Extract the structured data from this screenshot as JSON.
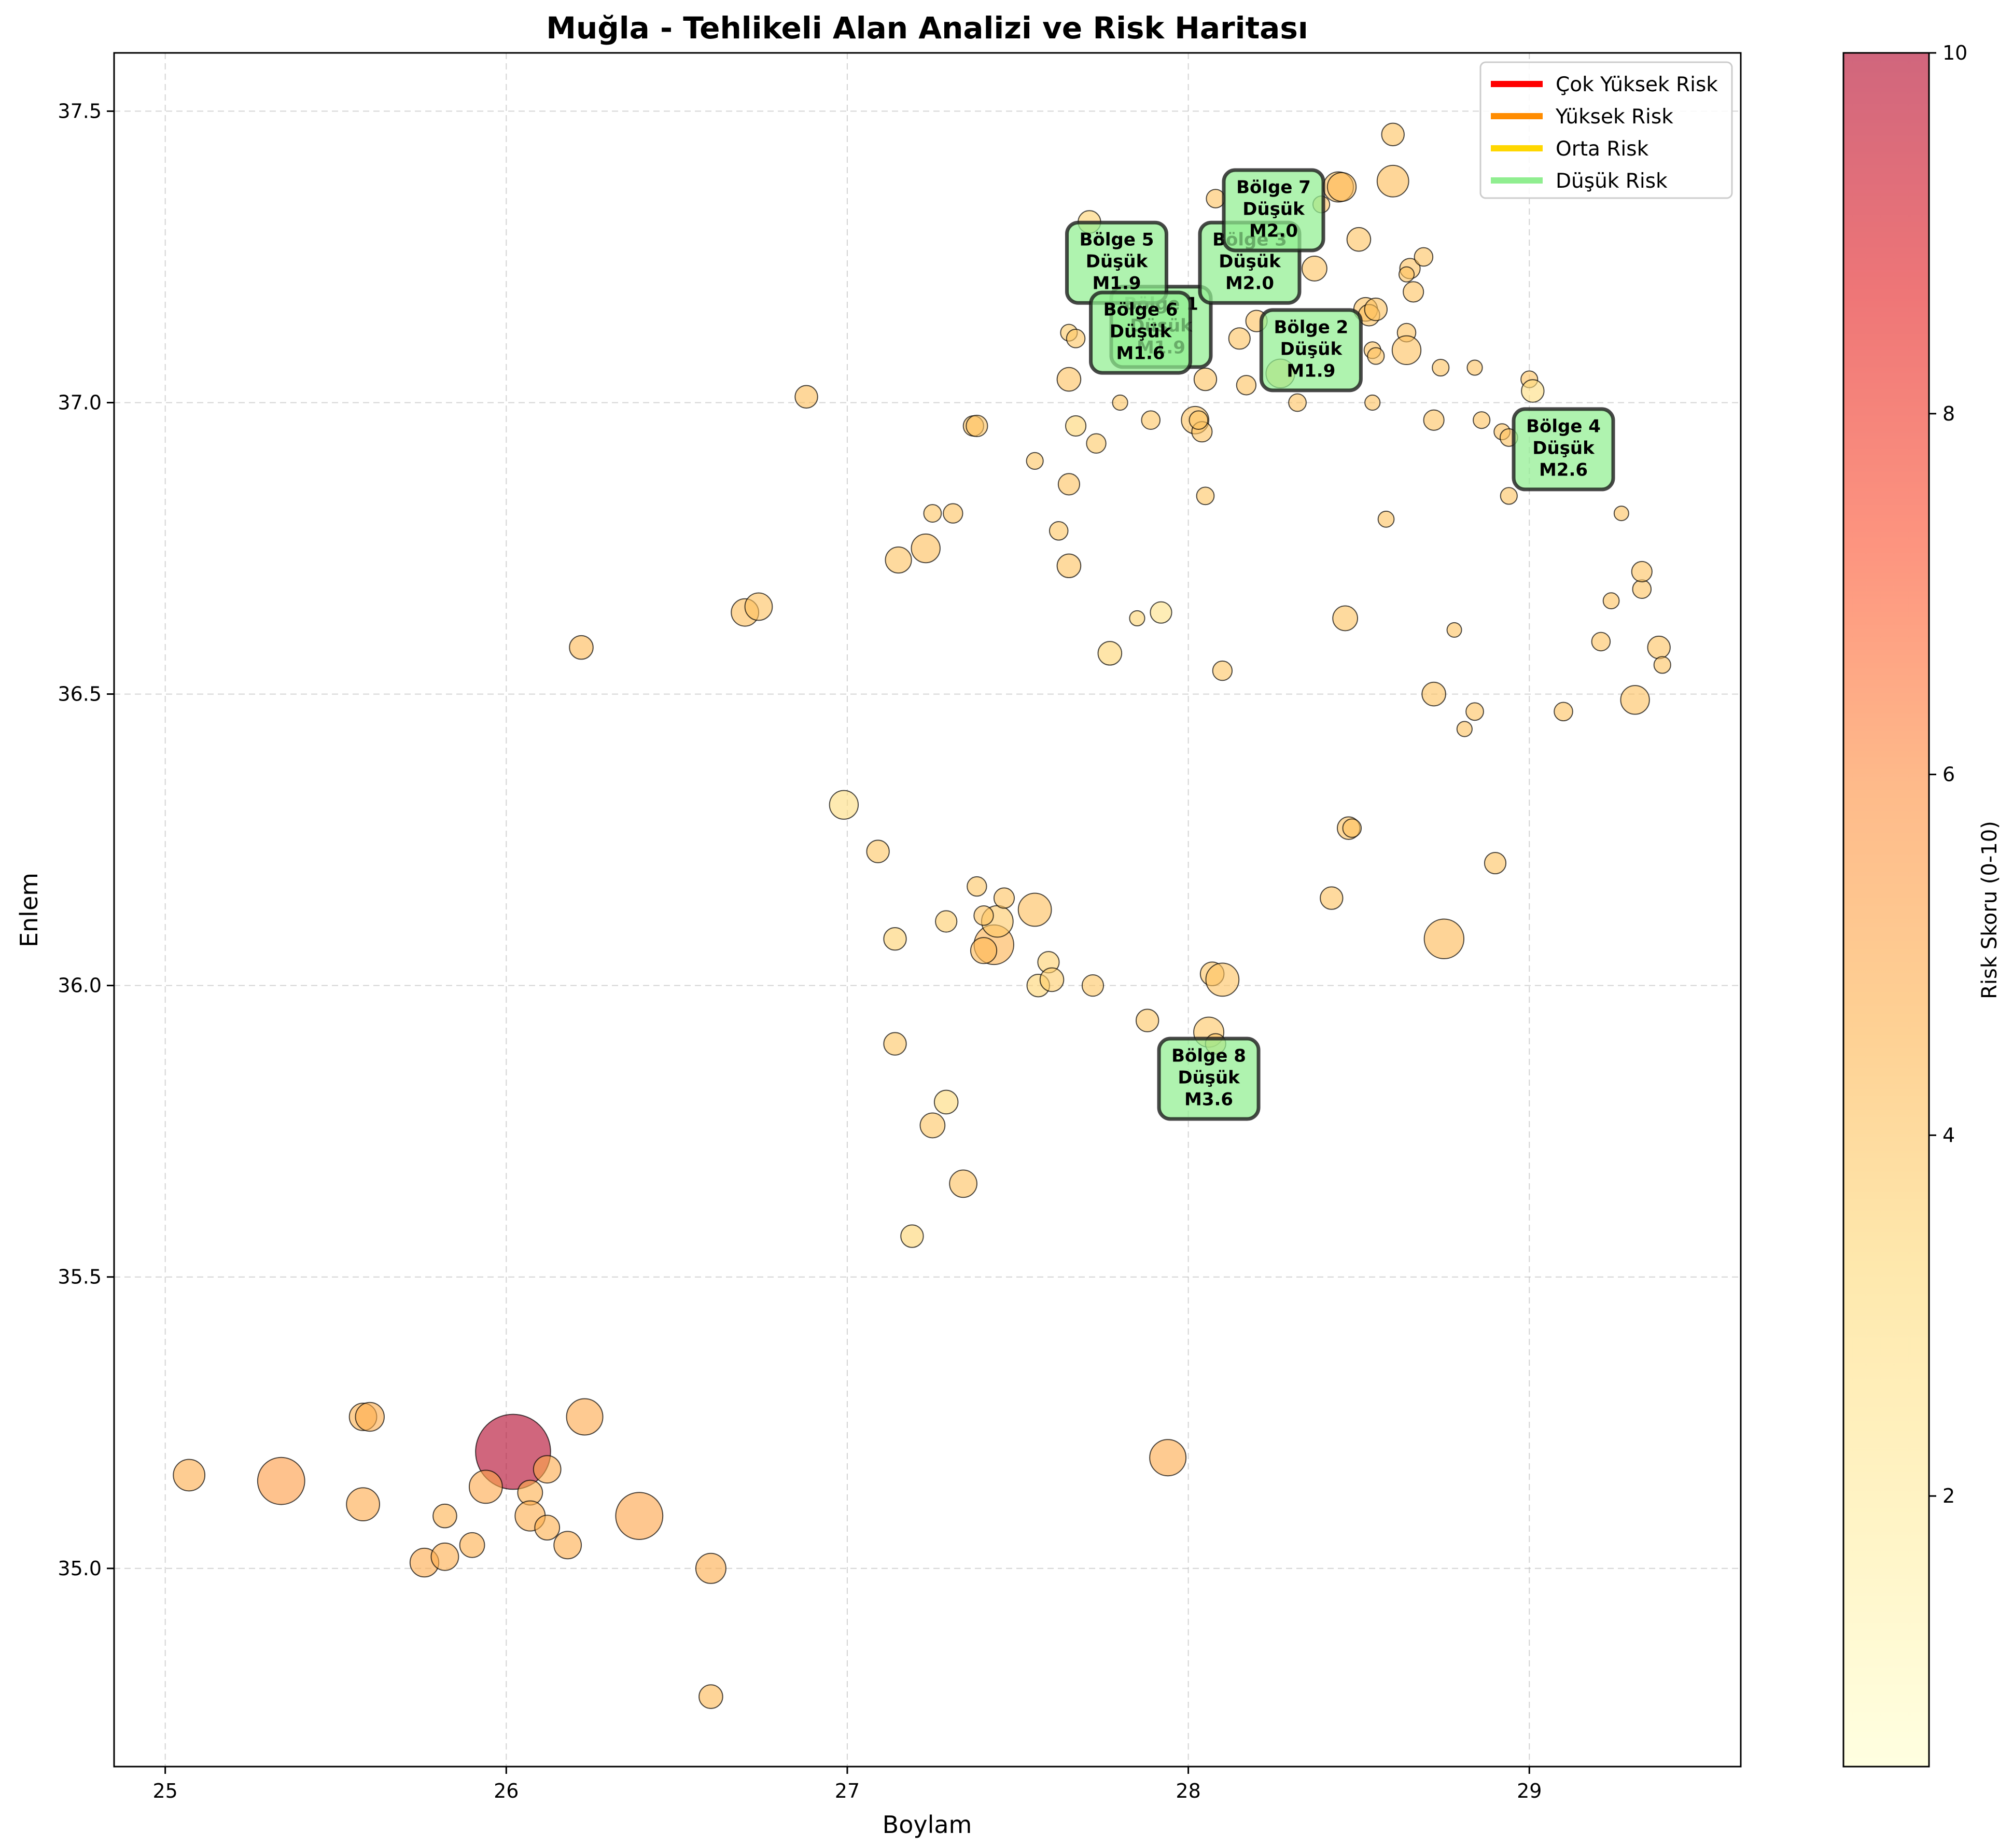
{
  "chart_data": {
    "type": "scatter",
    "title": "Muğla - Tehlikeli Alan Analizi ve Risk Haritası",
    "xlabel": "Boylam",
    "ylabel": "Enlem",
    "xlim": [
      24.85,
      29.62
    ],
    "ylim": [
      34.66,
      37.6
    ],
    "xticks": [
      "25",
      "26",
      "27",
      "28",
      "29"
    ],
    "yticks": [
      "35.0",
      "35.5",
      "36.0",
      "36.5",
      "37.0",
      "37.5"
    ],
    "grid": true,
    "colorbar": {
      "label": "Risk Skoru (0-10)",
      "range": [
        0.5,
        10
      ],
      "ticks": [
        "2",
        "4",
        "6",
        "8",
        "10"
      ],
      "colormap": [
        "#ffffcc",
        "#ffeda0",
        "#fed976",
        "#feb24c",
        "#fd8d3c",
        "#fc4e2a",
        "#e31a1c",
        "#b10026"
      ]
    },
    "legend": {
      "placement": "top-right",
      "entries": [
        {
          "label": "Çok Yüksek Risk",
          "color": "#ff0000"
        },
        {
          "label": "Yüksek Risk",
          "color": "#ff8c00"
        },
        {
          "label": "Orta Risk",
          "color": "#ffd700"
        },
        {
          "label": "Düşük Risk",
          "color": "#90ee90"
        }
      ]
    },
    "regions": [
      {
        "label": "Bölge 1",
        "risk": "Düşük",
        "mag": "M1.9",
        "x": 27.92,
        "y": 37.13
      },
      {
        "label": "Bölge 2",
        "risk": "Düşük",
        "mag": "M1.9",
        "x": 28.36,
        "y": 37.09
      },
      {
        "label": "Bölge 3",
        "risk": "Düşük",
        "mag": "M2.0",
        "x": 28.18,
        "y": 37.24
      },
      {
        "label": "Bölge 4",
        "risk": "Düşük",
        "mag": "M2.6",
        "x": 29.1,
        "y": 36.92
      },
      {
        "label": "Bölge 5",
        "risk": "Düşük",
        "mag": "M1.9",
        "x": 27.79,
        "y": 37.24
      },
      {
        "label": "Bölge 6",
        "risk": "Düşük",
        "mag": "M1.6",
        "x": 27.86,
        "y": 37.12
      },
      {
        "label": "Bölge 7",
        "risk": "Düşük",
        "mag": "M2.0",
        "x": 28.25,
        "y": 37.33
      },
      {
        "label": "Bölge 8",
        "risk": "Düşük",
        "mag": "M3.6",
        "x": 28.06,
        "y": 35.84
      }
    ],
    "points": [
      {
        "x": 26.02,
        "y": 35.2,
        "m": 5.4,
        "r": 10
      },
      {
        "x": 25.34,
        "y": 35.15,
        "m": 4.2,
        "r": 5.5
      },
      {
        "x": 25.07,
        "y": 35.16,
        "m": 3.3,
        "r": 4.8
      },
      {
        "x": 25.58,
        "y": 35.26,
        "m": 3.0,
        "r": 4.6
      },
      {
        "x": 25.6,
        "y": 35.26,
        "m": 3.1,
        "r": 4.8
      },
      {
        "x": 25.58,
        "y": 35.11,
        "m": 3.4,
        "r": 4.9
      },
      {
        "x": 25.82,
        "y": 35.09,
        "m": 2.7,
        "r": 4.6
      },
      {
        "x": 25.94,
        "y": 35.14,
        "m": 3.4,
        "r": 5.0
      },
      {
        "x": 25.76,
        "y": 35.01,
        "m": 3.1,
        "r": 4.9
      },
      {
        "x": 25.82,
        "y": 35.02,
        "m": 3.0,
        "r": 4.8
      },
      {
        "x": 25.9,
        "y": 35.04,
        "m": 2.8,
        "r": 4.7
      },
      {
        "x": 26.07,
        "y": 35.13,
        "m": 2.8,
        "r": 4.7
      },
      {
        "x": 26.12,
        "y": 35.17,
        "m": 3.0,
        "r": 4.9
      },
      {
        "x": 26.07,
        "y": 35.09,
        "m": 3.2,
        "r": 4.8
      },
      {
        "x": 26.12,
        "y": 35.07,
        "m": 2.8,
        "r": 4.7
      },
      {
        "x": 26.18,
        "y": 35.04,
        "m": 3.0,
        "r": 4.8
      },
      {
        "x": 26.23,
        "y": 35.26,
        "m": 3.6,
        "r": 5.0
      },
      {
        "x": 26.39,
        "y": 35.09,
        "m": 4.2,
        "r": 5.2
      },
      {
        "x": 26.6,
        "y": 35.0,
        "m": 3.2,
        "r": 4.8
      },
      {
        "x": 26.6,
        "y": 34.78,
        "m": 2.7,
        "r": 4.4
      },
      {
        "x": 27.94,
        "y": 35.19,
        "m": 3.6,
        "r": 4.9
      },
      {
        "x": 26.22,
        "y": 36.58,
        "m": 2.7,
        "r": 4.4
      },
      {
        "x": 26.88,
        "y": 37.01,
        "m": 2.6,
        "r": 4.2
      },
      {
        "x": 26.7,
        "y": 36.64,
        "m": 3.0,
        "r": 4.2
      },
      {
        "x": 26.74,
        "y": 36.65,
        "m": 3.0,
        "r": 4.1
      },
      {
        "x": 26.99,
        "y": 36.31,
        "m": 3.1,
        "r": 3.0
      },
      {
        "x": 27.09,
        "y": 36.23,
        "m": 2.6,
        "r": 3.9
      },
      {
        "x": 27.14,
        "y": 36.08,
        "m": 2.6,
        "r": 3.5
      },
      {
        "x": 27.14,
        "y": 35.9,
        "m": 2.6,
        "r": 3.9
      },
      {
        "x": 27.29,
        "y": 35.8,
        "m": 2.7,
        "r": 3.2
      },
      {
        "x": 27.25,
        "y": 35.76,
        "m": 2.8,
        "r": 3.9
      },
      {
        "x": 27.34,
        "y": 35.66,
        "m": 3.0,
        "r": 4.1
      },
      {
        "x": 27.19,
        "y": 35.57,
        "m": 2.6,
        "r": 3.4
      },
      {
        "x": 27.43,
        "y": 36.07,
        "m": 3.8,
        "r": 4.6
      },
      {
        "x": 27.44,
        "y": 36.11,
        "m": 3.3,
        "r": 3.8
      },
      {
        "x": 27.4,
        "y": 36.06,
        "m": 2.9,
        "r": 4.4
      },
      {
        "x": 27.29,
        "y": 36.11,
        "m": 2.5,
        "r": 3.7
      },
      {
        "x": 27.4,
        "y": 36.12,
        "m": 2.3,
        "r": 4.0
      },
      {
        "x": 27.46,
        "y": 36.15,
        "m": 2.4,
        "r": 4.0
      },
      {
        "x": 27.38,
        "y": 36.17,
        "m": 2.3,
        "r": 3.9
      },
      {
        "x": 27.55,
        "y": 36.13,
        "m": 3.4,
        "r": 4.2
      },
      {
        "x": 27.59,
        "y": 36.04,
        "m": 2.5,
        "r": 3.5
      },
      {
        "x": 27.56,
        "y": 36.0,
        "m": 2.6,
        "r": 3.4
      },
      {
        "x": 27.6,
        "y": 36.01,
        "m": 2.7,
        "r": 3.7
      },
      {
        "x": 27.72,
        "y": 36.0,
        "m": 2.5,
        "r": 3.9
      },
      {
        "x": 27.88,
        "y": 35.94,
        "m": 2.6,
        "r": 3.9
      },
      {
        "x": 28.06,
        "y": 35.92,
        "m": 3.2,
        "r": 3.9
      },
      {
        "x": 28.08,
        "y": 35.9,
        "m": 2.4,
        "r": 3.9
      },
      {
        "x": 28.07,
        "y": 36.02,
        "m": 2.7,
        "r": 3.9
      },
      {
        "x": 28.1,
        "y": 36.01,
        "m": 3.4,
        "r": 4.0
      },
      {
        "x": 28.42,
        "y": 36.15,
        "m": 2.6,
        "r": 4.0
      },
      {
        "x": 28.47,
        "y": 36.27,
        "m": 2.6,
        "r": 4.0
      },
      {
        "x": 28.48,
        "y": 36.27,
        "m": 2.2,
        "r": 4.0
      },
      {
        "x": 28.75,
        "y": 36.08,
        "m": 3.8,
        "r": 4.4
      },
      {
        "x": 28.9,
        "y": 36.21,
        "m": 2.5,
        "r": 4.0
      },
      {
        "x": 27.15,
        "y": 36.73,
        "m": 2.9,
        "r": 4.0
      },
      {
        "x": 27.23,
        "y": 36.75,
        "m": 3.1,
        "r": 4.2
      },
      {
        "x": 27.25,
        "y": 36.81,
        "m": 2.1,
        "r": 3.9
      },
      {
        "x": 27.31,
        "y": 36.81,
        "m": 2.3,
        "r": 4.0
      },
      {
        "x": 27.37,
        "y": 36.96,
        "m": 2.4,
        "r": 4.0
      },
      {
        "x": 27.38,
        "y": 36.96,
        "m": 2.5,
        "r": 4.0
      },
      {
        "x": 27.55,
        "y": 36.9,
        "m": 2.0,
        "r": 3.9
      },
      {
        "x": 27.62,
        "y": 36.78,
        "m": 2.2,
        "r": 3.9
      },
      {
        "x": 27.65,
        "y": 36.86,
        "m": 2.5,
        "r": 4.0
      },
      {
        "x": 27.65,
        "y": 36.72,
        "m": 2.7,
        "r": 4.0
      },
      {
        "x": 27.67,
        "y": 36.96,
        "m": 2.4,
        "r": 3.4
      },
      {
        "x": 27.73,
        "y": 36.93,
        "m": 2.3,
        "r": 3.8
      },
      {
        "x": 27.77,
        "y": 36.57,
        "m": 2.7,
        "r": 3.4
      },
      {
        "x": 27.85,
        "y": 36.63,
        "m": 1.8,
        "r": 3.4
      },
      {
        "x": 27.92,
        "y": 36.64,
        "m": 2.5,
        "r": 2.7
      },
      {
        "x": 28.1,
        "y": 36.54,
        "m": 2.3,
        "r": 3.9
      },
      {
        "x": 28.46,
        "y": 36.63,
        "m": 2.8,
        "r": 4.0
      },
      {
        "x": 27.65,
        "y": 37.04,
        "m": 2.7,
        "r": 4.1
      },
      {
        "x": 27.65,
        "y": 37.12,
        "m": 2.0,
        "r": 3.7
      },
      {
        "x": 27.67,
        "y": 37.11,
        "m": 2.2,
        "r": 3.9
      },
      {
        "x": 27.71,
        "y": 37.31,
        "m": 2.6,
        "r": 3.5
      },
      {
        "x": 27.8,
        "y": 37.0,
        "m": 1.8,
        "r": 3.9
      },
      {
        "x": 27.89,
        "y": 36.97,
        "m": 2.2,
        "r": 3.9
      },
      {
        "x": 28.02,
        "y": 36.97,
        "m": 3.0,
        "r": 4.0
      },
      {
        "x": 28.04,
        "y": 36.95,
        "m": 2.4,
        "r": 4.0
      },
      {
        "x": 28.03,
        "y": 36.97,
        "m": 2.2,
        "r": 3.9
      },
      {
        "x": 28.05,
        "y": 36.84,
        "m": 2.1,
        "r": 3.9
      },
      {
        "x": 28.05,
        "y": 37.04,
        "m": 2.6,
        "r": 4.0
      },
      {
        "x": 28.15,
        "y": 37.11,
        "m": 2.5,
        "r": 4.0
      },
      {
        "x": 28.17,
        "y": 37.03,
        "m": 2.3,
        "r": 4.0
      },
      {
        "x": 28.2,
        "y": 37.14,
        "m": 2.5,
        "r": 4.0
      },
      {
        "x": 28.27,
        "y": 37.05,
        "m": 3.1,
        "r": 4.0
      },
      {
        "x": 28.32,
        "y": 37.0,
        "m": 2.1,
        "r": 4.0
      },
      {
        "x": 28.37,
        "y": 37.23,
        "m": 2.8,
        "r": 4.0
      },
      {
        "x": 28.44,
        "y": 37.37,
        "m": 3.2,
        "r": 4.1
      },
      {
        "x": 28.45,
        "y": 37.37,
        "m": 3.1,
        "r": 4.4
      },
      {
        "x": 28.5,
        "y": 37.28,
        "m": 2.7,
        "r": 4.0
      },
      {
        "x": 28.08,
        "y": 37.35,
        "m": 2.2,
        "r": 4.0
      },
      {
        "x": 28.39,
        "y": 37.34,
        "m": 2.0,
        "r": 4.0
      },
      {
        "x": 28.6,
        "y": 37.46,
        "m": 2.6,
        "r": 4.0
      },
      {
        "x": 28.6,
        "y": 37.38,
        "m": 3.3,
        "r": 4.3
      },
      {
        "x": 28.65,
        "y": 37.23,
        "m": 2.4,
        "r": 4.0
      },
      {
        "x": 28.64,
        "y": 37.22,
        "m": 1.8,
        "r": 4.0
      },
      {
        "x": 28.69,
        "y": 37.25,
        "m": 2.2,
        "r": 4.0
      },
      {
        "x": 28.66,
        "y": 37.19,
        "m": 2.4,
        "r": 4.0
      },
      {
        "x": 28.52,
        "y": 37.16,
        "m": 2.7,
        "r": 4.0
      },
      {
        "x": 28.53,
        "y": 37.15,
        "m": 2.5,
        "r": 4.0
      },
      {
        "x": 28.55,
        "y": 37.16,
        "m": 2.6,
        "r": 4.0
      },
      {
        "x": 28.64,
        "y": 37.12,
        "m": 2.2,
        "r": 4.0
      },
      {
        "x": 28.54,
        "y": 37.09,
        "m": 2.0,
        "r": 4.0
      },
      {
        "x": 28.55,
        "y": 37.08,
        "m": 2.0,
        "r": 4.0
      },
      {
        "x": 28.64,
        "y": 37.09,
        "m": 3.1,
        "r": 4.1
      },
      {
        "x": 28.54,
        "y": 37.0,
        "m": 1.8,
        "r": 4.0
      },
      {
        "x": 28.74,
        "y": 37.06,
        "m": 2.0,
        "r": 4.0
      },
      {
        "x": 28.84,
        "y": 37.06,
        "m": 1.8,
        "r": 4.0
      },
      {
        "x": 28.72,
        "y": 36.97,
        "m": 2.4,
        "r": 4.0
      },
      {
        "x": 28.86,
        "y": 36.97,
        "m": 2.0,
        "r": 4.0
      },
      {
        "x": 28.92,
        "y": 36.95,
        "m": 1.9,
        "r": 4.0
      },
      {
        "x": 28.94,
        "y": 36.94,
        "m": 2.1,
        "r": 4.0
      },
      {
        "x": 28.94,
        "y": 36.84,
        "m": 2.0,
        "r": 4.0
      },
      {
        "x": 29.0,
        "y": 37.04,
        "m": 2.0,
        "r": 4.0
      },
      {
        "x": 29.01,
        "y": 37.02,
        "m": 2.6,
        "r": 3.0
      },
      {
        "x": 28.58,
        "y": 36.8,
        "m": 1.9,
        "r": 4.0
      },
      {
        "x": 29.27,
        "y": 36.81,
        "m": 1.7,
        "r": 4.0
      },
      {
        "x": 28.78,
        "y": 36.61,
        "m": 1.7,
        "r": 4.0
      },
      {
        "x": 28.72,
        "y": 36.5,
        "m": 2.7,
        "r": 4.0
      },
      {
        "x": 28.84,
        "y": 36.47,
        "m": 2.1,
        "r": 4.0
      },
      {
        "x": 28.81,
        "y": 36.44,
        "m": 1.8,
        "r": 4.0
      },
      {
        "x": 29.1,
        "y": 36.47,
        "m": 2.2,
        "r": 4.0
      },
      {
        "x": 29.21,
        "y": 36.59,
        "m": 2.2,
        "r": 4.0
      },
      {
        "x": 29.31,
        "y": 36.49,
        "m": 3.1,
        "r": 4.1
      },
      {
        "x": 29.38,
        "y": 36.58,
        "m": 2.6,
        "r": 4.0
      },
      {
        "x": 29.39,
        "y": 36.55,
        "m": 2.0,
        "r": 4.0
      },
      {
        "x": 29.24,
        "y": 36.66,
        "m": 1.9,
        "r": 4.0
      },
      {
        "x": 29.33,
        "y": 36.68,
        "m": 2.2,
        "r": 4.0
      },
      {
        "x": 29.33,
        "y": 36.71,
        "m": 2.4,
        "r": 4.0
      }
    ]
  }
}
